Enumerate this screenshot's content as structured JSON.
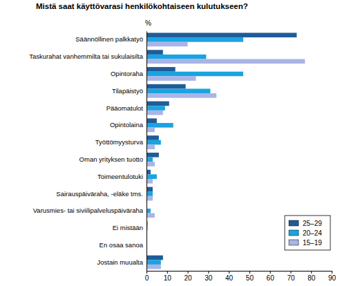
{
  "chart_data": {
    "type": "bar",
    "orientation": "horizontal",
    "title": "Mistä saat käyttövarasi henkilökohtaiseen kulutukseen?",
    "xlabel": "%",
    "categories": [
      "Säännöllinen palkkatyö",
      "Taskurahat vanhemmilta tai sukulaisilta",
      "Opintoraha",
      "Tilapäistyö",
      "Pääomatulot",
      "Opintolaina",
      "Työttömyysturva",
      "Oman yrityksen tuotto",
      "Toimeentulotuki",
      "Sairauspäiväraha, -eläke tms.",
      "Varusmies- tai siviilipalveluspäiväraha",
      "Ei mistään",
      "En osaa sanoa",
      "Jostain muualta"
    ],
    "series": [
      {
        "name": "25–29",
        "color": "#1f5c99",
        "values": [
          73,
          8,
          14,
          19,
          11,
          5,
          6,
          6,
          2,
          3,
          0,
          0.5,
          0,
          8
        ]
      },
      {
        "name": "20–24",
        "color": "#1aa3e0",
        "values": [
          47,
          29,
          47,
          31,
          9,
          13,
          7,
          3,
          5,
          3,
          2,
          0.5,
          0,
          7
        ]
      },
      {
        "name": "15–19",
        "color": "#aab4e6",
        "values": [
          20,
          77,
          24,
          34,
          8,
          4,
          4,
          4,
          3,
          3,
          4,
          0.3,
          0.2,
          7
        ]
      }
    ],
    "xlim": [
      0,
      90
    ],
    "xticks": [
      0,
      10,
      20,
      30,
      40,
      50,
      60,
      70,
      80,
      90
    ],
    "grid": false,
    "legend": "bottom-right",
    "data_labels": false
  }
}
